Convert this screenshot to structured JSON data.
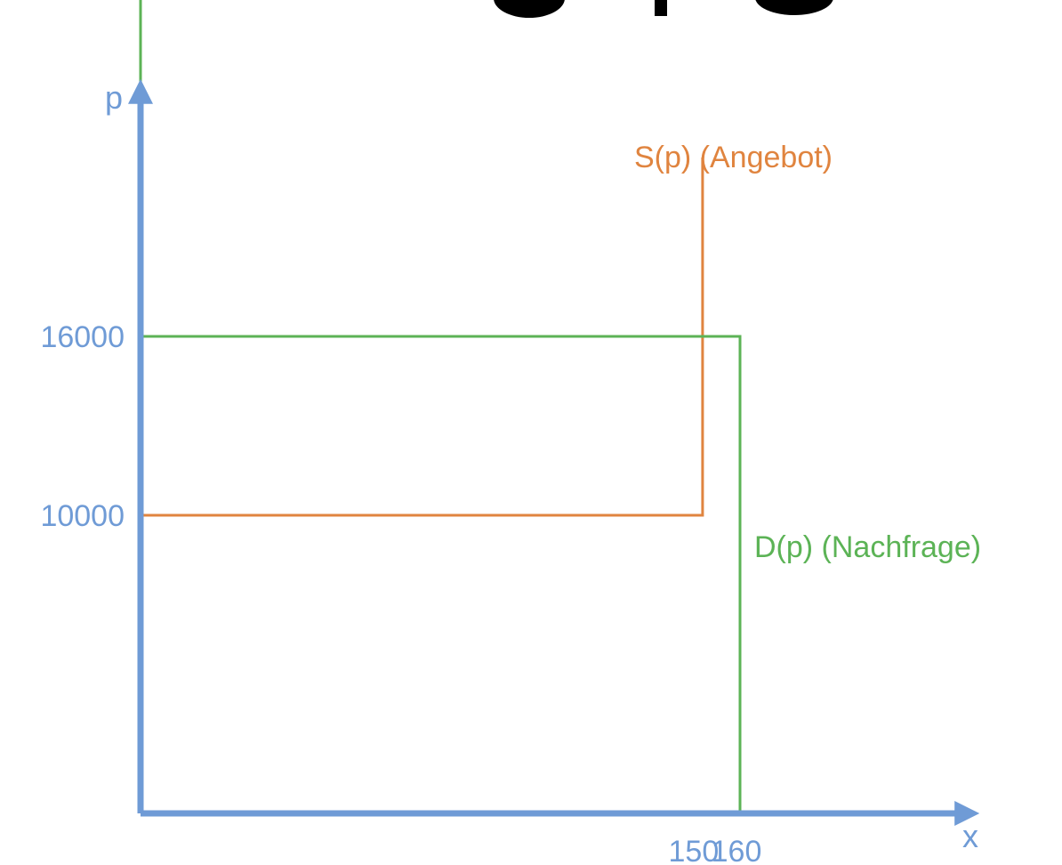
{
  "chart_data": {
    "type": "line",
    "title": "",
    "xlabel": "x",
    "ylabel": "p",
    "grid": false,
    "colors": {
      "axis": "#6f9bd6",
      "supply": "#e0843f",
      "demand": "#5cb356"
    },
    "x_ticks": [
      {
        "value": 150,
        "label": "150"
      },
      {
        "value": 160,
        "label": "160"
      }
    ],
    "y_ticks": [
      {
        "value": 10000,
        "label": "10000"
      },
      {
        "value": 16000,
        "label": "16000"
      }
    ],
    "series": [
      {
        "name": "S(p) (Angebot)",
        "color": "#e0843f",
        "points": [
          {
            "x": 0,
            "y": 0
          },
          {
            "x": 0,
            "y": 10000
          },
          {
            "x": 150,
            "y": 10000
          },
          {
            "x": 150,
            "y": 22000
          }
        ]
      },
      {
        "name": "D(p) (Nachfrage)",
        "color": "#5cb356",
        "points": [
          {
            "x": 0,
            "y": 31000
          },
          {
            "x": 0,
            "y": 16000
          },
          {
            "x": 160,
            "y": 16000
          },
          {
            "x": 160,
            "y": 0
          }
        ]
      }
    ]
  }
}
